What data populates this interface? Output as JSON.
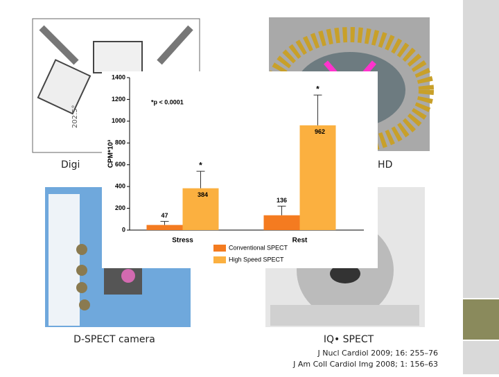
{
  "chart_data": {
    "type": "bar",
    "y_label": "CPM*10³",
    "annotation": "*p < 0.0001",
    "categories": [
      "Stress",
      "Rest"
    ],
    "series": [
      {
        "name": "Conventional SPECT",
        "color": "#f47b20",
        "values": [
          47,
          136
        ],
        "errors": [
          33,
          84
        ]
      },
      {
        "name": "High Speed SPECT",
        "color": "#fbb040",
        "values": [
          384,
          962
        ],
        "errors": [
          156,
          278
        ],
        "markers": [
          "*",
          "*"
        ]
      }
    ],
    "ylim": [
      0,
      1400
    ],
    "yticks": [
      0,
      200,
      400,
      600,
      800,
      1000,
      1200,
      1400
    ],
    "legend": "bottom"
  },
  "captions": {
    "top_left": "Digi",
    "top_right": "-HD",
    "bottom_left": "D-SPECT camera",
    "bottom_right": "IQ• SPECT",
    "references": [
      "J Nucl Cardiol 2009; 16: 255–76",
      "J Am Coll Cardiol Img 2008; 1: 156–63"
    ]
  }
}
